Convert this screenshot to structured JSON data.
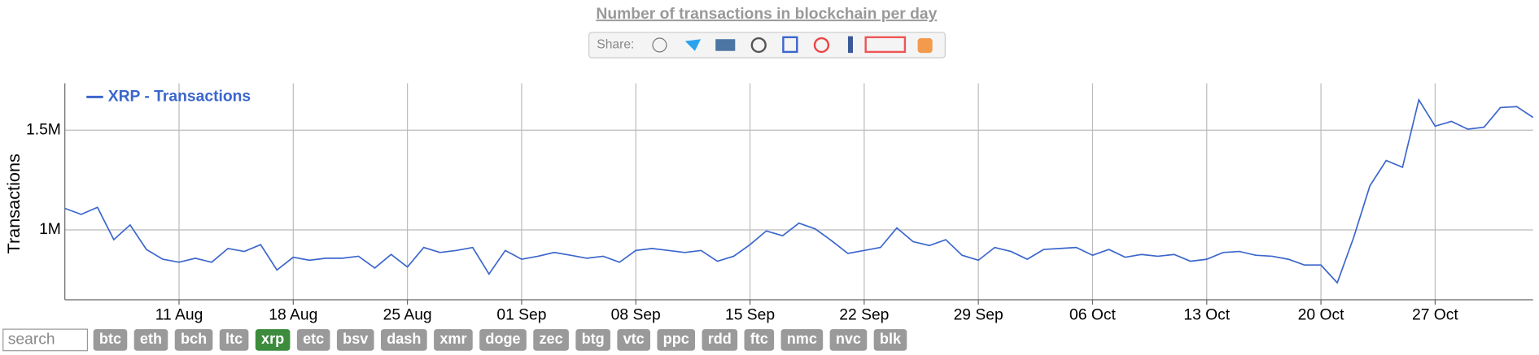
{
  "chart_data": {
    "type": "line",
    "title": "Number of transactions in blockchain per day",
    "y_label": "Transactions",
    "x": [
      "04 Aug",
      "05 Aug",
      "06 Aug",
      "07 Aug",
      "08 Aug",
      "09 Aug",
      "10 Aug",
      "11 Aug",
      "12 Aug",
      "13 Aug",
      "14 Aug",
      "15 Aug",
      "16 Aug",
      "17 Aug",
      "18 Aug",
      "19 Aug",
      "20 Aug",
      "21 Aug",
      "22 Aug",
      "23 Aug",
      "24 Aug",
      "25 Aug",
      "26 Aug",
      "27 Aug",
      "28 Aug",
      "29 Aug",
      "30 Aug",
      "31 Aug",
      "01 Sep",
      "02 Sep",
      "03 Sep",
      "04 Sep",
      "05 Sep",
      "06 Sep",
      "07 Sep",
      "08 Sep",
      "09 Sep",
      "10 Sep",
      "11 Sep",
      "12 Sep",
      "13 Sep",
      "14 Sep",
      "15 Sep",
      "16 Sep",
      "17 Sep",
      "18 Sep",
      "19 Sep",
      "20 Sep",
      "21 Sep",
      "22 Sep",
      "23 Sep",
      "24 Sep",
      "25 Sep",
      "26 Sep",
      "27 Sep",
      "28 Sep",
      "29 Sep",
      "30 Sep",
      "01 Oct",
      "02 Oct",
      "03 Oct",
      "04 Oct",
      "05 Oct",
      "06 Oct",
      "07 Oct",
      "08 Oct",
      "09 Oct",
      "10 Oct",
      "11 Oct",
      "12 Oct",
      "13 Oct",
      "14 Oct",
      "15 Oct",
      "16 Oct",
      "17 Oct",
      "18 Oct",
      "19 Oct",
      "20 Oct",
      "21 Oct",
      "22 Oct",
      "23 Oct",
      "24 Oct",
      "25 Oct",
      "26 Oct",
      "27 Oct",
      "28 Oct",
      "29 Oct",
      "30 Oct",
      "31 Oct",
      "01 Nov",
      "02 Nov"
    ],
    "series": [
      {
        "name": "XRP - Transactions",
        "color": "#3b66cc",
        "values": [
          1108000,
          1078000,
          1113000,
          951000,
          1025000,
          902000,
          853000,
          838000,
          858000,
          838000,
          907000,
          892000,
          926000,
          799000,
          863000,
          848000,
          858000,
          858000,
          868000,
          809000,
          877000,
          814000,
          912000,
          887000,
          897000,
          912000,
          779000,
          897000,
          853000,
          868000,
          887000,
          873000,
          858000,
          868000,
          838000,
          897000,
          907000,
          897000,
          887000,
          897000,
          843000,
          868000,
          926000,
          995000,
          971000,
          1034000,
          1005000,
          946000,
          882000,
          897000,
          912000,
          1010000,
          941000,
          922000,
          951000,
          873000,
          848000,
          912000,
          892000,
          853000,
          902000,
          907000,
          912000,
          873000,
          902000,
          863000,
          877000,
          868000,
          877000,
          843000,
          853000,
          887000,
          892000,
          873000,
          868000,
          853000,
          824000,
          824000,
          735000,
          961000,
          1221000,
          1348000,
          1314000,
          1652000,
          1520000,
          1544000,
          1505000,
          1515000,
          1613000,
          1618000,
          1564000
        ]
      }
    ],
    "xticks": [
      "11 Aug",
      "18 Aug",
      "25 Aug",
      "01 Sep",
      "08 Sep",
      "15 Sep",
      "22 Sep",
      "29 Sep",
      "06 Oct",
      "13 Oct",
      "20 Oct",
      "27 Oct"
    ],
    "ylim": [
      650000,
      1735000
    ],
    "yticks": [
      {
        "value": 1000000,
        "label": "1M"
      },
      {
        "value": 1500000,
        "label": "1.5M"
      }
    ],
    "grid": true,
    "legend": "top-left"
  },
  "share": {
    "label": "Share:"
  },
  "search": {
    "placeholder": "search"
  },
  "coins": {
    "items": [
      "btc",
      "eth",
      "bch",
      "ltc",
      "xrp",
      "etc",
      "bsv",
      "dash",
      "xmr",
      "doge",
      "zec",
      "btg",
      "vtc",
      "ppc",
      "rdd",
      "ftc",
      "nmc",
      "nvc",
      "blk"
    ],
    "active": "xrp"
  }
}
